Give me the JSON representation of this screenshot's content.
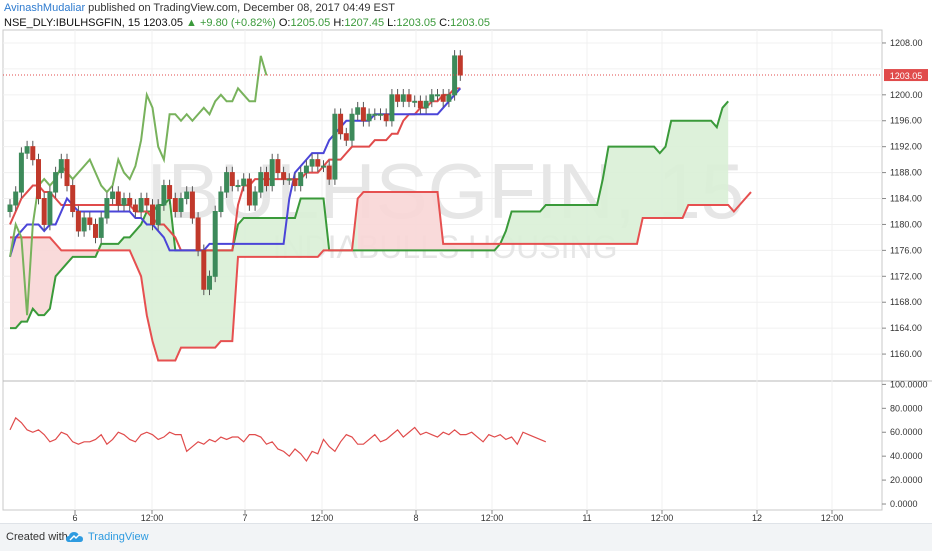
{
  "header": {
    "author": "AvinashMudaliar",
    "published_text": " published on TradingView.com, December 08, 2017 04:49 EST"
  },
  "symbol_line": {
    "symbol": "NSE_DLY:IBULHSGFIN, 15",
    "price": "1203.05",
    "change": "+9.80 (+0.82%)",
    "o_label": "O:",
    "o": "1205.05",
    "h_label": "H:",
    "h": "1207.45",
    "l_label": "L:",
    "l": "1203.05",
    "c_label": "C:",
    "c": "1203.05"
  },
  "watermark": {
    "symbol": "IBULHSGFIN, 15",
    "name": "INDIABULLS HOUSING"
  },
  "footer": {
    "created_with": "Created with",
    "brand": "TradingView",
    "logo_icon": "tradingview-cloud-icon"
  },
  "colors": {
    "up": "#3d8a5a",
    "down": "#c0392b",
    "conversion": "#4b45d8",
    "base": "#e04b4b",
    "lagging": "#78b25c",
    "span_a": "#3a9a3a",
    "span_b": "#e65050",
    "cloud_bull": "#d9efd6",
    "cloud_bear": "#f8d6d6",
    "rsi": "#e04b4b",
    "last_price": "#e04b4b"
  },
  "chart_data": [
    {
      "type": "candlestick",
      "title": "",
      "overlay": "ichimoku",
      "y_ticks": [
        "1208.00",
        "1204.00",
        "1200.00",
        "1196.00",
        "1192.00",
        "1188.00",
        "1184.00",
        "1180.00",
        "1176.00",
        "1172.00",
        "1168.00",
        "1164.00",
        "1160.00"
      ],
      "ylim": [
        1156,
        1210
      ],
      "x_ticks": [
        "6",
        "12:00",
        "7",
        "12:00",
        "8",
        "12:00",
        "11",
        "12:00",
        "12",
        "12:00"
      ],
      "last_price_label": "1203.05",
      "close": [
        1183,
        1185,
        1191,
        1192,
        1190,
        1184,
        1180,
        1185,
        1188,
        1190,
        1186,
        1182,
        1179,
        1181,
        1180,
        1178,
        1181,
        1184,
        1185,
        1183,
        1184,
        1183,
        1182,
        1184,
        1183,
        1180,
        1183,
        1186,
        1184,
        1182,
        1184,
        1185,
        1181,
        1176,
        1170,
        1172,
        1182,
        1185,
        1188,
        1186,
        1186,
        1187,
        1183,
        1185,
        1188,
        1186,
        1190,
        1188,
        1187,
        1187,
        1186,
        1188,
        1189,
        1190,
        1189,
        1189,
        1187,
        1197,
        1194,
        1193,
        1197,
        1198,
        1196,
        1197,
        1197,
        1197,
        1196,
        1200,
        1199,
        1200,
        1199,
        1199,
        1198,
        1199,
        1200,
        1200,
        1199,
        1200,
        1206,
        1203.05
      ],
      "chikou": [
        1175,
        1180,
        1178,
        1166,
        1180,
        1186,
        1187,
        1186,
        1187,
        1189,
        1188,
        1187,
        1188,
        1189,
        1190,
        1188,
        1186,
        1185,
        1186,
        1190,
        1188,
        1187,
        1189,
        1193,
        1200,
        1198,
        1192,
        1190,
        1197,
        1197,
        1196,
        1197,
        1196,
        1197,
        1198,
        1197,
        1199,
        1200,
        1199,
        1199,
        1201,
        1200,
        1199,
        1199,
        1206,
        1203
      ],
      "conversion": [
        1175,
        1178,
        1179,
        1180,
        1180,
        1180,
        1179,
        1180,
        1180,
        1182,
        1184,
        1183,
        1182,
        1182,
        1182,
        1182,
        1182,
        1182,
        1182,
        1182,
        1182,
        1182,
        1181,
        1181,
        1180,
        1180,
        1179,
        1178,
        1176,
        1176,
        1176,
        1176,
        1176,
        1176,
        1176,
        1177,
        1177,
        1177,
        1177,
        1177,
        1177,
        1177,
        1177,
        1177,
        1177,
        1177,
        1177,
        1177,
        1177,
        1184,
        1188,
        1189,
        1190,
        1191,
        1191,
        1191,
        1193,
        1194,
        1195,
        1196,
        1196,
        1196,
        1196,
        1196,
        1197,
        1197,
        1197,
        1197,
        1197,
        1197,
        1197,
        1197,
        1197,
        1197,
        1197,
        1197,
        1198,
        1199,
        1200,
        1201
      ],
      "base": [
        1180,
        1182,
        1184,
        1185,
        1186,
        1186,
        1185,
        1185,
        1184,
        1183,
        1183,
        1183,
        1183,
        1183,
        1183,
        1183,
        1183,
        1183,
        1183,
        1183,
        1183,
        1183,
        1182,
        1182,
        1182,
        1181,
        1180,
        1180,
        1179,
        1178,
        1176,
        1176,
        1176,
        1176,
        1176,
        1176,
        1176,
        1176,
        1176,
        1176,
        1183,
        1186,
        1186,
        1187,
        1187,
        1187,
        1187,
        1187,
        1187,
        1187,
        1187,
        1187,
        1188,
        1188,
        1188,
        1189,
        1190,
        1190,
        1190,
        1191,
        1192,
        1192,
        1192,
        1192,
        1193,
        1193,
        1193,
        1194,
        1194,
        1196,
        1197,
        1197,
        1198,
        1198,
        1199,
        1199,
        1200,
        1200,
        1201,
        1201
      ],
      "span_a": [
        1164,
        1164,
        1165,
        1165,
        1167,
        1166,
        1166,
        1167,
        1172,
        1173,
        1174,
        1175,
        1175,
        1175,
        1175,
        1175,
        1177,
        1177,
        1177,
        1177,
        1178,
        1178,
        1179,
        1180,
        1182,
        1182,
        1183,
        1183,
        1184,
        1176,
        1176,
        1176,
        1176,
        1176,
        1176,
        1176,
        1176,
        1176,
        1176,
        1176,
        1180,
        1181,
        1181,
        1181,
        1181,
        1181,
        1181,
        1181,
        1181,
        1181,
        1181,
        1184,
        1184,
        1184,
        1184,
        1184,
        1176,
        1176,
        1176,
        1176,
        1176,
        1176,
        1176,
        1176,
        1176,
        1176,
        1176,
        1176,
        1176,
        1176,
        1176,
        1176,
        1176,
        1176,
        1176,
        1176,
        1176,
        1176,
        1176,
        1176,
        1176,
        1176,
        1176,
        1176,
        1176,
        1176,
        1177,
        1179,
        1182,
        1182,
        1182,
        1182,
        1182,
        1182,
        1183,
        1183,
        1183,
        1183,
        1183,
        1183,
        1183,
        1183,
        1183,
        1183,
        1187,
        1192,
        1192,
        1192,
        1192,
        1192,
        1192,
        1192,
        1192,
        1192,
        1191,
        1192,
        1196,
        1196,
        1196,
        1196,
        1196,
        1196,
        1196,
        1196,
        1195,
        1198,
        1199
      ],
      "span_b": [
        1178,
        1178,
        1178,
        1178,
        1178,
        1178,
        1178,
        1178,
        1177,
        1176,
        1176,
        1176,
        1176,
        1176,
        1176,
        1176,
        1176,
        1176,
        1176,
        1176,
        1176,
        1176,
        1174,
        1172,
        1166,
        1162,
        1159,
        1159,
        1159,
        1159,
        1161,
        1161,
        1161,
        1161,
        1161,
        1161,
        1161,
        1162,
        1162,
        1162,
        1175,
        1175,
        1175,
        1175,
        1175,
        1175,
        1175,
        1175,
        1175,
        1175,
        1175,
        1175,
        1175,
        1175,
        1175,
        1176,
        1176,
        1176,
        1176,
        1176,
        1176,
        1184,
        1185,
        1185,
        1185,
        1185,
        1185,
        1185,
        1185,
        1185,
        1185,
        1185,
        1185,
        1185,
        1185,
        1185,
        1177,
        1177,
        1177,
        1177,
        1177,
        1177,
        1177,
        1177,
        1177,
        1177,
        1177,
        1177,
        1177,
        1177,
        1177,
        1177,
        1177,
        1177,
        1177,
        1177,
        1177,
        1177,
        1177,
        1177,
        1177,
        1177,
        1177,
        1177,
        1177,
        1177,
        1177,
        1177,
        1177,
        1177,
        1177,
        1181,
        1181,
        1181,
        1181,
        1181,
        1181,
        1181,
        1181,
        1183,
        1183,
        1183,
        1183,
        1183,
        1183,
        1183,
        1183,
        1182,
        1183,
        1184,
        1185
      ]
    },
    {
      "type": "line",
      "title": "",
      "indicator": "RSI",
      "y_ticks": [
        "100.0000",
        "80.0000",
        "60.0000",
        "40.0000",
        "20.0000",
        "0.0000"
      ],
      "ylim": [
        -5,
        102
      ],
      "values": [
        62,
        72,
        68,
        62,
        60,
        62,
        58,
        52,
        54,
        60,
        58,
        52,
        50,
        52,
        52,
        54,
        58,
        50,
        54,
        60,
        58,
        54,
        52,
        58,
        60,
        58,
        54,
        56,
        60,
        58,
        58,
        44,
        48,
        52,
        50,
        54,
        52,
        56,
        54,
        56,
        56,
        52,
        58,
        58,
        56,
        50,
        52,
        46,
        44,
        40,
        46,
        42,
        36,
        44,
        42,
        54,
        48,
        44,
        52,
        58,
        56,
        50,
        50,
        54,
        58,
        52,
        54,
        58,
        62,
        56,
        60,
        64,
        58,
        60,
        58,
        56,
        60,
        58,
        62,
        58,
        58,
        60,
        56,
        52,
        58,
        56,
        58,
        54,
        56,
        50,
        60,
        58,
        56,
        54,
        52
      ]
    }
  ]
}
